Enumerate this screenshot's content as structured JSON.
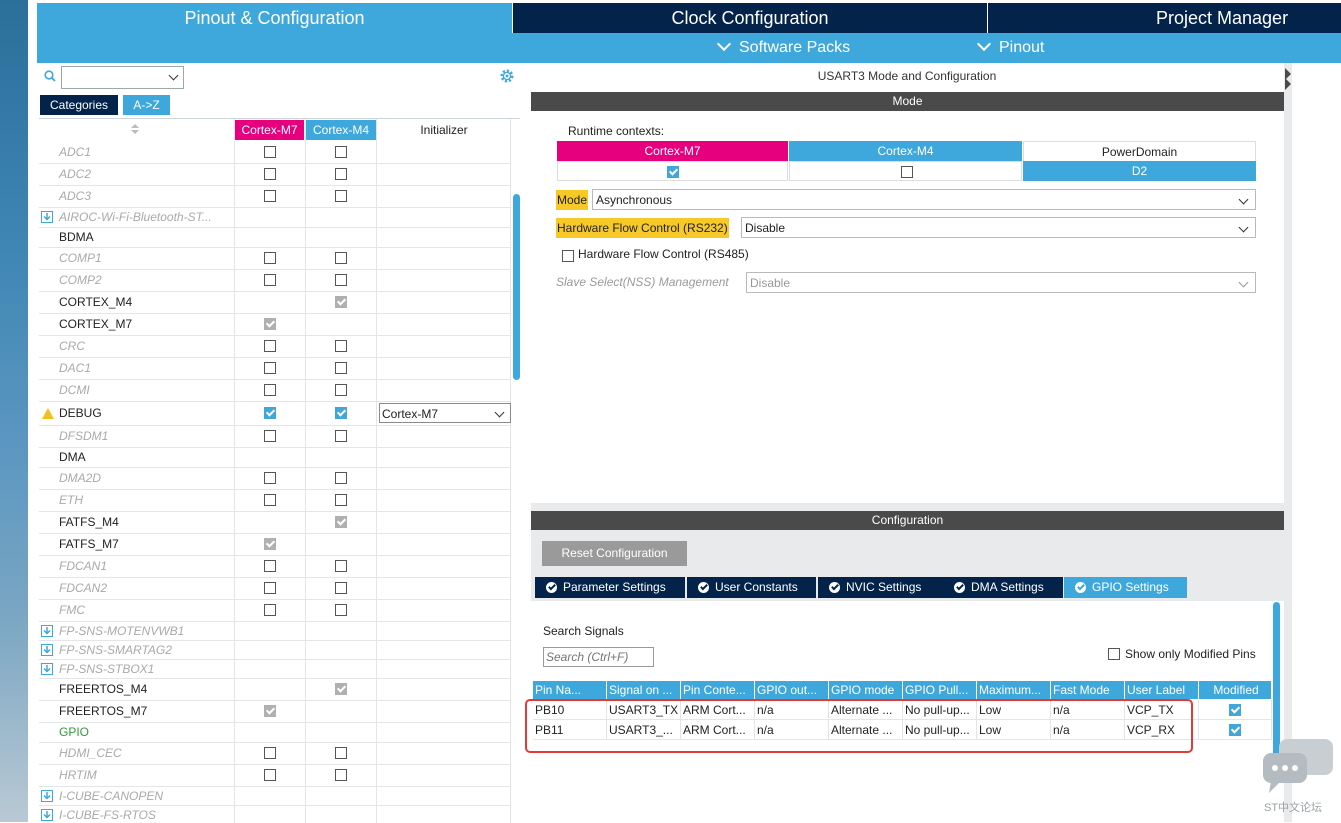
{
  "header": {
    "tabs": [
      {
        "label": "Pinout & Configuration",
        "active": true
      },
      {
        "label": "Clock Configuration",
        "active": false
      },
      {
        "label": "Project Manager",
        "active": false
      }
    ],
    "submenu": [
      {
        "label": "Software Packs"
      },
      {
        "label": "Pinout"
      }
    ]
  },
  "left": {
    "search": {
      "value": ""
    },
    "view_buttons": [
      "Categories",
      "A->Z"
    ],
    "columns": [
      "Cortex-M7",
      "Cortex-M4",
      "Initializer"
    ],
    "rows": [
      {
        "name": "ADC1",
        "style": "italic",
        "m7": "off",
        "m4": "off"
      },
      {
        "name": "ADC2",
        "style": "italic",
        "m7": "off",
        "m4": "off"
      },
      {
        "name": "ADC3",
        "style": "italic",
        "m7": "off",
        "m4": "off"
      },
      {
        "name": "AIROC-Wi-Fi-Bluetooth-ST...",
        "style": "italic",
        "icon": "download",
        "m7": "none",
        "m4": "none",
        "h": 20
      },
      {
        "name": "BDMA",
        "style": "norm",
        "m7": "none",
        "m4": "none",
        "h": 20
      },
      {
        "name": "COMP1",
        "style": "italic",
        "m7": "off",
        "m4": "off"
      },
      {
        "name": "COMP2",
        "style": "italic",
        "m7": "off",
        "m4": "off"
      },
      {
        "name": "CORTEX_M4",
        "style": "norm",
        "m7": "none",
        "m4": "gray"
      },
      {
        "name": "CORTEX_M7",
        "style": "norm",
        "m7": "gray",
        "m4": "none"
      },
      {
        "name": "CRC",
        "style": "italic",
        "m7": "off",
        "m4": "off"
      },
      {
        "name": "DAC1",
        "style": "italic",
        "m7": "off",
        "m4": "off"
      },
      {
        "name": "DCMI",
        "style": "italic",
        "m7": "off",
        "m4": "off"
      },
      {
        "name": "DEBUG",
        "style": "norm",
        "icon": "warning",
        "m7": "on",
        "m4": "on",
        "init": "Cortex-M7",
        "h": 24
      },
      {
        "name": "DFSDM1",
        "style": "italic",
        "m7": "off",
        "m4": "off"
      },
      {
        "name": "DMA",
        "style": "norm",
        "m7": "none",
        "m4": "none",
        "h": 20
      },
      {
        "name": "DMA2D",
        "style": "italic",
        "m7": "off",
        "m4": "off"
      },
      {
        "name": "ETH",
        "style": "italic",
        "m7": "off",
        "m4": "off"
      },
      {
        "name": "FATFS_M4",
        "style": "norm",
        "m7": "none",
        "m4": "gray"
      },
      {
        "name": "FATFS_M7",
        "style": "norm",
        "m7": "gray",
        "m4": "none"
      },
      {
        "name": "FDCAN1",
        "style": "italic",
        "m7": "off",
        "m4": "off"
      },
      {
        "name": "FDCAN2",
        "style": "italic",
        "m7": "off",
        "m4": "off"
      },
      {
        "name": "FMC",
        "style": "italic",
        "m7": "off",
        "m4": "off"
      },
      {
        "name": "FP-SNS-MOTENVWB1",
        "style": "italic",
        "icon": "download",
        "m7": "none",
        "m4": "none",
        "h": 19
      },
      {
        "name": "FP-SNS-SMARTAG2",
        "style": "italic",
        "icon": "download",
        "m7": "none",
        "m4": "none",
        "h": 19
      },
      {
        "name": "FP-SNS-STBOX1",
        "style": "italic",
        "icon": "download",
        "m7": "none",
        "m4": "none",
        "h": 19
      },
      {
        "name": "FREERTOS_M4",
        "style": "norm",
        "m7": "none",
        "m4": "gray"
      },
      {
        "name": "FREERTOS_M7",
        "style": "norm",
        "m7": "gray",
        "m4": "none"
      },
      {
        "name": "GPIO",
        "style": "green",
        "m7": "none",
        "m4": "none",
        "h": 20
      },
      {
        "name": "HDMI_CEC",
        "style": "italic",
        "m7": "off",
        "m4": "off"
      },
      {
        "name": "HRTIM",
        "style": "italic",
        "m7": "off",
        "m4": "off"
      },
      {
        "name": "I-CUBE-CANOPEN",
        "style": "italic",
        "icon": "download",
        "m7": "none",
        "m4": "none",
        "h": 19
      },
      {
        "name": "I-CUBE-FS-RTOS",
        "style": "italic",
        "icon": "download",
        "m7": "none",
        "m4": "none",
        "h": 19
      },
      {
        "name": "",
        "style": "italic",
        "icon": "download",
        "m7": "none",
        "m4": "none",
        "h": 19
      }
    ]
  },
  "right": {
    "title": "USART3 Mode and Configuration",
    "mode_band": "Mode",
    "runtime_label": "Runtime contexts:",
    "contexts": [
      {
        "name": "Cortex-M7",
        "checked": true
      },
      {
        "name": "Cortex-M4",
        "checked": false
      },
      {
        "name": "PowerDomain",
        "value": "D2"
      }
    ],
    "mode": {
      "label": "Mode",
      "value": "Asynchronous"
    },
    "hwfc232": {
      "label": "Hardware Flow Control (RS232)",
      "value": "Disable"
    },
    "hwfc485": {
      "label": "Hardware Flow Control (RS485)"
    },
    "nss": {
      "label": "Slave Select(NSS) Management",
      "value": "Disable"
    },
    "config_band": "Configuration",
    "reset_button": "Reset Configuration",
    "param_tabs": [
      "Parameter Settings",
      "User Constants",
      "NVIC Settings",
      "DMA Settings",
      "GPIO Settings"
    ],
    "search_signals": {
      "label": "Search Signals",
      "placeholder": "Search (Ctrl+F)"
    },
    "show_modified": "Show only Modified Pins",
    "grid": {
      "columns": [
        "Pin Na...",
        "Signal on ...",
        "Pin Conte...",
        "GPIO out...",
        "GPIO mode",
        "GPIO Pull...",
        "Maximum...",
        "Fast Mode",
        "User Label",
        "Modified"
      ],
      "rows": [
        [
          "PB10",
          "USART3_TX",
          "ARM Cort...",
          "n/a",
          "Alternate ...",
          "No pull-up...",
          "Low",
          "n/a",
          "VCP_TX",
          true
        ],
        [
          "PB11",
          "USART3_...",
          "ARM Cort...",
          "n/a",
          "Alternate ...",
          "No pull-up...",
          "Low",
          "n/a",
          "VCP_RX",
          true
        ]
      ]
    }
  },
  "watermark": "ST中文论坛",
  "colors": {
    "accent": "#3ea8dc",
    "dark": "#03234b",
    "m7": "#e6007e",
    "warning": "#f2c11b",
    "highlight": "#f6c928",
    "red": "#e53935"
  }
}
